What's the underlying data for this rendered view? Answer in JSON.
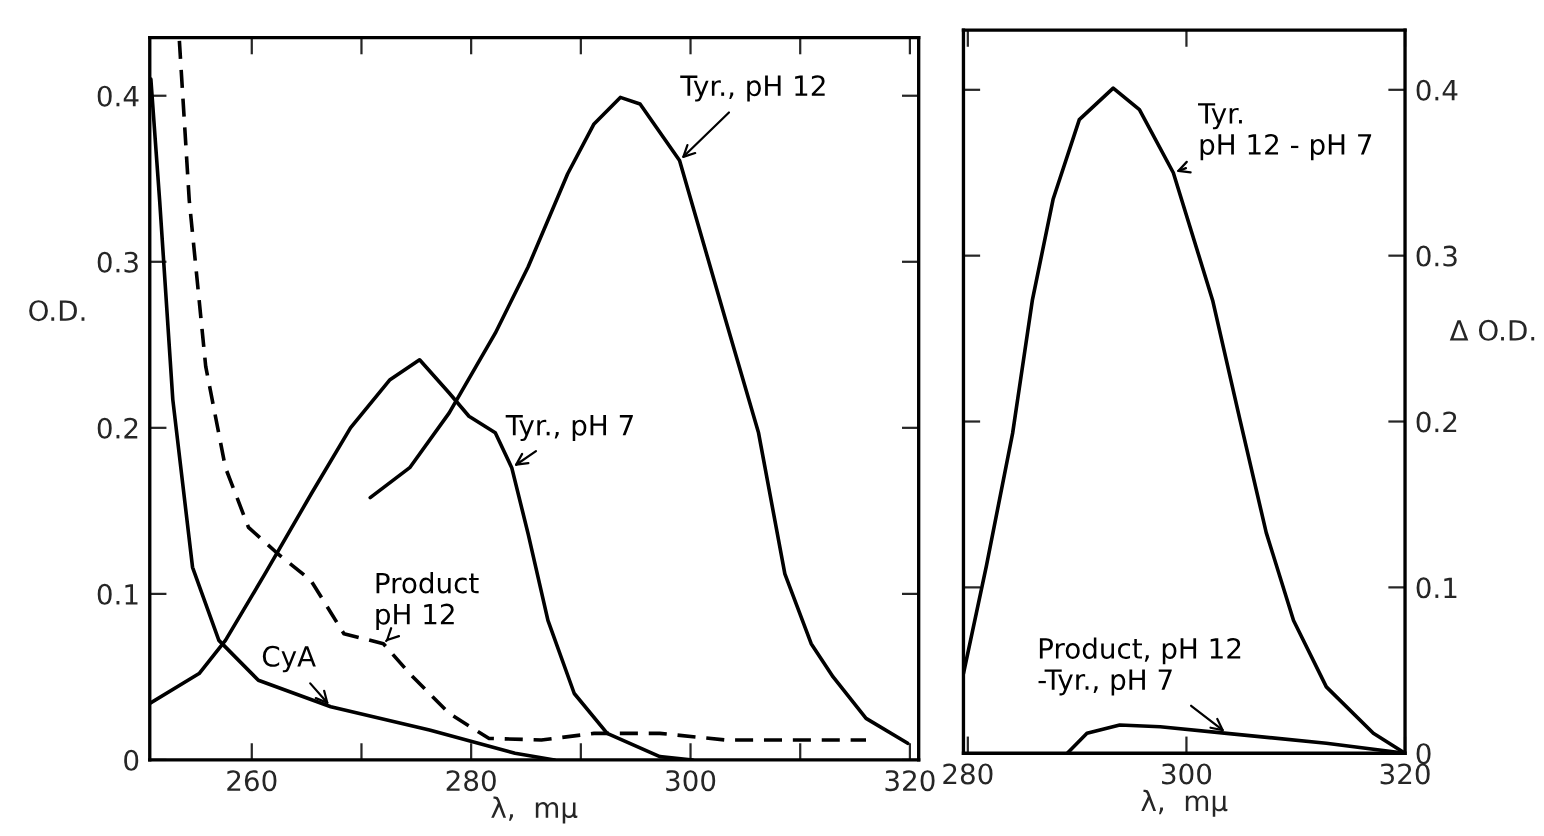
{
  "chart_data": [
    {
      "type": "line",
      "xlabel": "λ,  mμ",
      "ylabel": "O.D.",
      "xlim": [
        250.7,
        320.8
      ],
      "ylim": [
        0,
        0.435
      ],
      "xticks": [
        260,
        {
          "value": 270,
          "label": null
        },
        280,
        {
          "value": 290,
          "label": null
        },
        300,
        {
          "value": 310,
          "label": null
        },
        320
      ],
      "yticks": [
        0,
        0.1,
        0.2,
        0.3,
        0.4
      ],
      "series": [
        {
          "name": "Tyr., pH 12",
          "color": "#000000",
          "line_style": "solid",
          "x": [
            270.8,
            274.4,
            278.0,
            282.2,
            285.2,
            288.8,
            291.2,
            293.6,
            295.4,
            299.0,
            303.2,
            306.2,
            308.6,
            311.0,
            313.0,
            316.0,
            319.8
          ],
          "values": [
            0.158,
            0.176,
            0.209,
            0.257,
            0.297,
            0.353,
            0.383,
            0.399,
            0.395,
            0.361,
            0.265,
            0.197,
            0.112,
            0.07,
            0.05,
            0.025,
            0.01
          ]
        },
        {
          "name": "Tyr., pH 7",
          "color": "#000000",
          "line_style": "solid",
          "x": [
            250.7,
            255.2,
            257.6,
            261.2,
            265.4,
            269.0,
            272.6,
            275.3,
            278.0,
            279.8,
            282.2,
            283.7,
            285.2,
            287.0,
            289.4,
            292.4,
            297.2,
            300.2
          ],
          "values": [
            0.034,
            0.052,
            0.072,
            0.112,
            0.16,
            0.2,
            0.229,
            0.241,
            0.221,
            0.207,
            0.197,
            0.176,
            0.136,
            0.084,
            0.04,
            0.016,
            0.002,
            0
          ]
        },
        {
          "name": "Product\npH 12",
          "color": "#000000",
          "line_style": "dashed",
          "x": [
            253.4,
            254.3,
            255.8,
            257.6,
            259.7,
            262.4,
            265.4,
            268.4,
            272.0,
            274.4,
            278.0,
            281.6,
            286.4,
            291.2,
            297.2,
            303.2,
            316.0
          ],
          "values": [
            0.433,
            0.337,
            0.237,
            0.176,
            0.14,
            0.124,
            0.108,
            0.076,
            0.07,
            0.052,
            0.028,
            0.013,
            0.012,
            0.016,
            0.016,
            0.012,
            0.012
          ]
        },
        {
          "name": "CyA",
          "color": "#000000",
          "line_style": "solid",
          "x": [
            250.8,
            251.6,
            252.8,
            254.6,
            257.0,
            260.6,
            267.2,
            276.2,
            284.0,
            287.6
          ],
          "values": [
            0.41,
            0.337,
            0.217,
            0.116,
            0.072,
            0.048,
            0.032,
            0.018,
            0.004,
            0
          ]
        }
      ]
    },
    {
      "type": "line",
      "xlabel": "λ,  mμ",
      "ylabel": "Δ O.D.",
      "xlim": [
        279.6,
        320
      ],
      "ylim": [
        0,
        0.436
      ],
      "xticks": [
        280,
        300,
        320
      ],
      "yticks": [
        0,
        0.1,
        0.2,
        0.3,
        0.4
      ],
      "series": [
        {
          "name": "Tyr.\npH 12 - pH 7",
          "color": "#000000",
          "line_style": "solid",
          "x": [
            279.6,
            281.7,
            284.1,
            285.9,
            287.8,
            290.2,
            293.3,
            295.7,
            298.8,
            302.4,
            304.9,
            307.3,
            309.8,
            312.8,
            317.1,
            320.0
          ],
          "values": [
            0.048,
            0.113,
            0.193,
            0.273,
            0.334,
            0.382,
            0.401,
            0.388,
            0.35,
            0.273,
            0.201,
            0.133,
            0.08,
            0.04,
            0.012,
            0
          ]
        },
        {
          "name": "Product, pH 12\n-Tyr., pH 7",
          "color": "#000000",
          "line_style": "solid",
          "x": [
            289.1,
            290.9,
            293.9,
            297.6,
            303.7,
            312.8,
            320.0
          ],
          "values": [
            0,
            0.012,
            0.017,
            0.016,
            0.012,
            0.006,
            0
          ]
        }
      ]
    }
  ]
}
